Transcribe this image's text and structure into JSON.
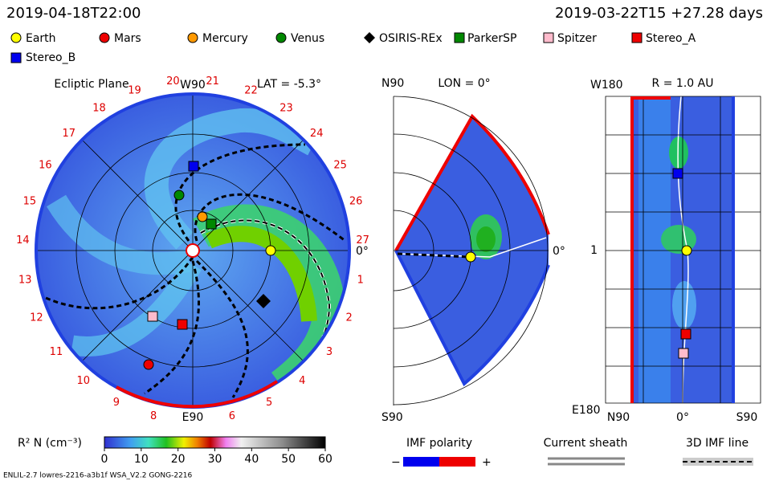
{
  "header": {
    "date": "2019-04-18T22:00",
    "run": "2019-03-22T15 +27.28 days"
  },
  "legend": [
    "Earth",
    "Mars",
    "Mercury",
    "Venus",
    "OSIRIS-REx",
    "ParkerSP",
    "Spitzer",
    "Stereo_A",
    "Stereo_B"
  ],
  "ecliptic": {
    "title": "Ecliptic Plane",
    "top": "W90",
    "lat": "LAT = -5.3°",
    "right": "0°",
    "bottom": "E90",
    "longitudes": [
      1,
      2,
      3,
      4,
      5,
      6,
      8,
      9,
      10,
      11,
      12,
      13,
      14,
      15,
      16,
      17,
      18,
      19,
      20,
      21,
      22,
      23,
      24,
      25,
      26,
      27
    ]
  },
  "meridional": {
    "top": "N90",
    "lon": "LON = 0°",
    "right": "0°",
    "bottom": "S90"
  },
  "radial": {
    "top": "W180",
    "r": "R = 1.0 AU",
    "left": "1",
    "bottom": "E180",
    "xlabels": [
      "N90",
      "0°",
      "S90"
    ]
  },
  "colorbar": {
    "label": "R² N (cm⁻³)",
    "ticks": [
      0,
      10,
      20,
      30,
      40,
      50,
      60
    ]
  },
  "imf": {
    "title": "IMF polarity",
    "minus": "−",
    "plus": "+"
  },
  "sheath": "Current sheath",
  "line3d": "3D IMF line",
  "footer": "ENLIL-2.7 lowres-2216-a3b1f WSA_V2.2 GONG-2216"
}
